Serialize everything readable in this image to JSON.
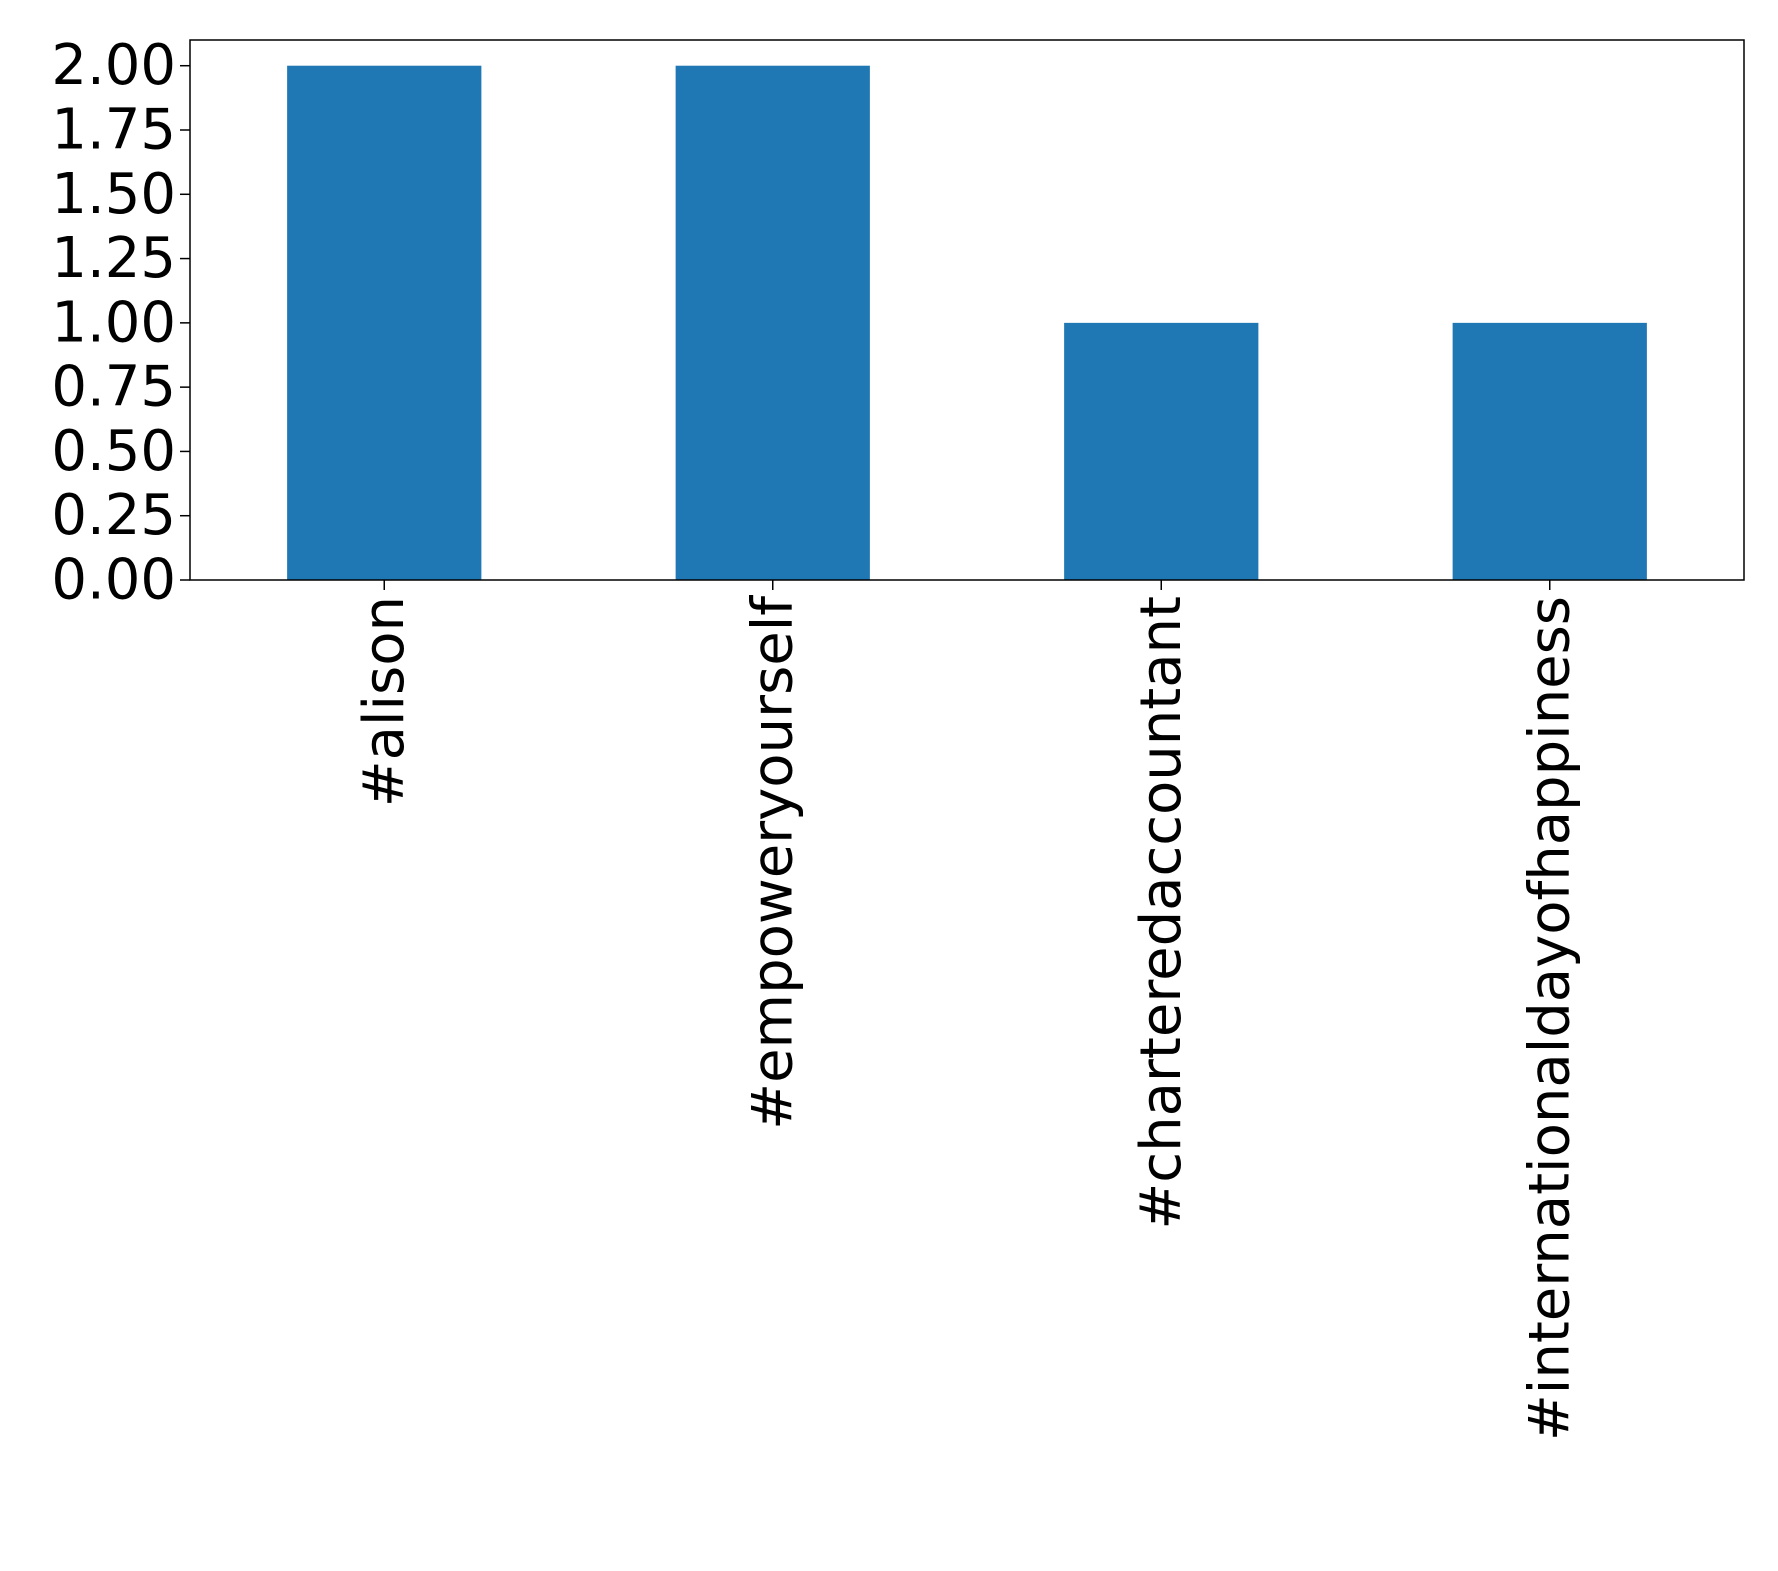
{
  "chart_data": {
    "type": "bar",
    "title": "",
    "xlabel": "",
    "ylabel": "",
    "categories": [
      "#alison",
      "#empoweryourself",
      "#charteredaccountant",
      "#internationaldayofhappiness"
    ],
    "values": [
      2,
      2,
      1,
      1
    ],
    "ylim": [
      0,
      2.1
    ],
    "yticks": [
      "0.00",
      "0.25",
      "0.50",
      "0.75",
      "1.00",
      "1.25",
      "1.50",
      "1.75",
      "2.00"
    ],
    "bar_color": "#1f77b4",
    "grid": false,
    "legend": "none"
  }
}
